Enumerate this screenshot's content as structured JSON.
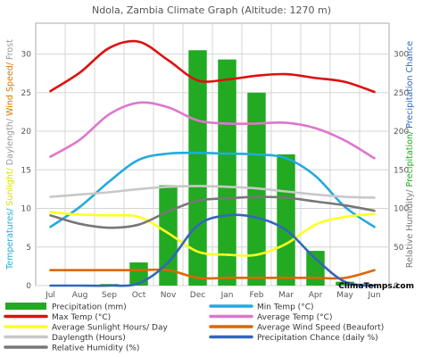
{
  "chart_data": {
    "type": "bar",
    "title": "Ndola, Zambia Climate Graph (Altitude: 1270 m)",
    "categories": [
      "Jul",
      "Aug",
      "Sep",
      "Oct",
      "Nov",
      "Dec",
      "Jan",
      "Feb",
      "Mar",
      "Apr",
      "May",
      "Jun"
    ],
    "ylabel_left": [
      {
        "text": "Temperatures/ ",
        "color": "#22aadd"
      },
      {
        "text": "Sunlight/ ",
        "color": "#dddd00"
      },
      {
        "text": "Daylength/ ",
        "color": "#999999"
      },
      {
        "text": "Wind Speed/ ",
        "color": "#dd7700"
      },
      {
        "text": "Frost",
        "color": "#999999"
      }
    ],
    "ylabel_right": [
      {
        "text": "Relative Humidity/ ",
        "color": "#777777"
      },
      {
        "text": "Precipitation/ ",
        "color": "#22aa22"
      },
      {
        "text": "Precipitation Chance",
        "color": "#3366bb"
      }
    ],
    "y_left": {
      "min": 0,
      "max": 34,
      "ticks": [
        0,
        5,
        10,
        15,
        20,
        25,
        30
      ]
    },
    "y_right": {
      "min": 0,
      "max": 340,
      "ticks": [
        0,
        50,
        100,
        150,
        200,
        250,
        300
      ]
    },
    "grid": true,
    "bars": {
      "name": "Precipitation (mm)",
      "color": "#22aa22",
      "axis": "right",
      "values": [
        0,
        0,
        2,
        30,
        130,
        305,
        293,
        250,
        170,
        45,
        5,
        0
      ]
    },
    "series": [
      {
        "name": "Max Temp (°C)",
        "color": "#dd1111",
        "axis": "left",
        "values": [
          25.2,
          27.6,
          30.8,
          31.6,
          29.2,
          26.6,
          26.7,
          27.2,
          27.4,
          26.9,
          26.4,
          25.1
        ]
      },
      {
        "name": "Min Temp (°C)",
        "color": "#22aadd",
        "axis": "left",
        "values": [
          7.6,
          10.2,
          13.5,
          16.3,
          17.1,
          17.2,
          17.1,
          17.0,
          16.5,
          14.2,
          10.2,
          7.6
        ]
      },
      {
        "name": "Average Temp (°C)",
        "color": "#dd77cc",
        "axis": "left",
        "values": [
          16.7,
          18.9,
          22.2,
          23.7,
          23.1,
          21.4,
          21.0,
          21.0,
          21.1,
          20.4,
          18.8,
          16.5
        ]
      },
      {
        "name": "Average Sunlight Hours/ Day",
        "color": "#ffff22",
        "axis": "left",
        "values": [
          9.5,
          9.2,
          9.1,
          8.9,
          6.8,
          4.4,
          4.0,
          4.0,
          5.4,
          7.9,
          8.9,
          9.3
        ]
      },
      {
        "name": "Average Wind Speed (Beaufort)",
        "color": "#dd6600",
        "axis": "left",
        "values": [
          2.0,
          2.0,
          2.0,
          2.0,
          2.0,
          1.0,
          1.0,
          1.0,
          1.0,
          1.0,
          1.0,
          2.0
        ]
      },
      {
        "name": "Daylength (Hours)",
        "color": "#c8c8c8",
        "axis": "left",
        "values": [
          11.5,
          11.8,
          12.1,
          12.5,
          12.8,
          12.9,
          12.8,
          12.6,
          12.2,
          11.8,
          11.5,
          11.4
        ]
      },
      {
        "name": "Precipitation Chance (daily %)",
        "color": "#3366bb",
        "axis": "right",
        "values": [
          0,
          0,
          0,
          3,
          30,
          78,
          91,
          88,
          72,
          35,
          5,
          0
        ]
      },
      {
        "name": "Relative Humidity (%)",
        "color": "#777777",
        "axis": "right",
        "values": [
          91,
          80,
          75,
          79,
          96,
          110,
          113,
          115,
          114,
          109,
          104,
          97
        ]
      }
    ],
    "legend_position": "bottom",
    "brand": "ClimaTemps.com"
  }
}
